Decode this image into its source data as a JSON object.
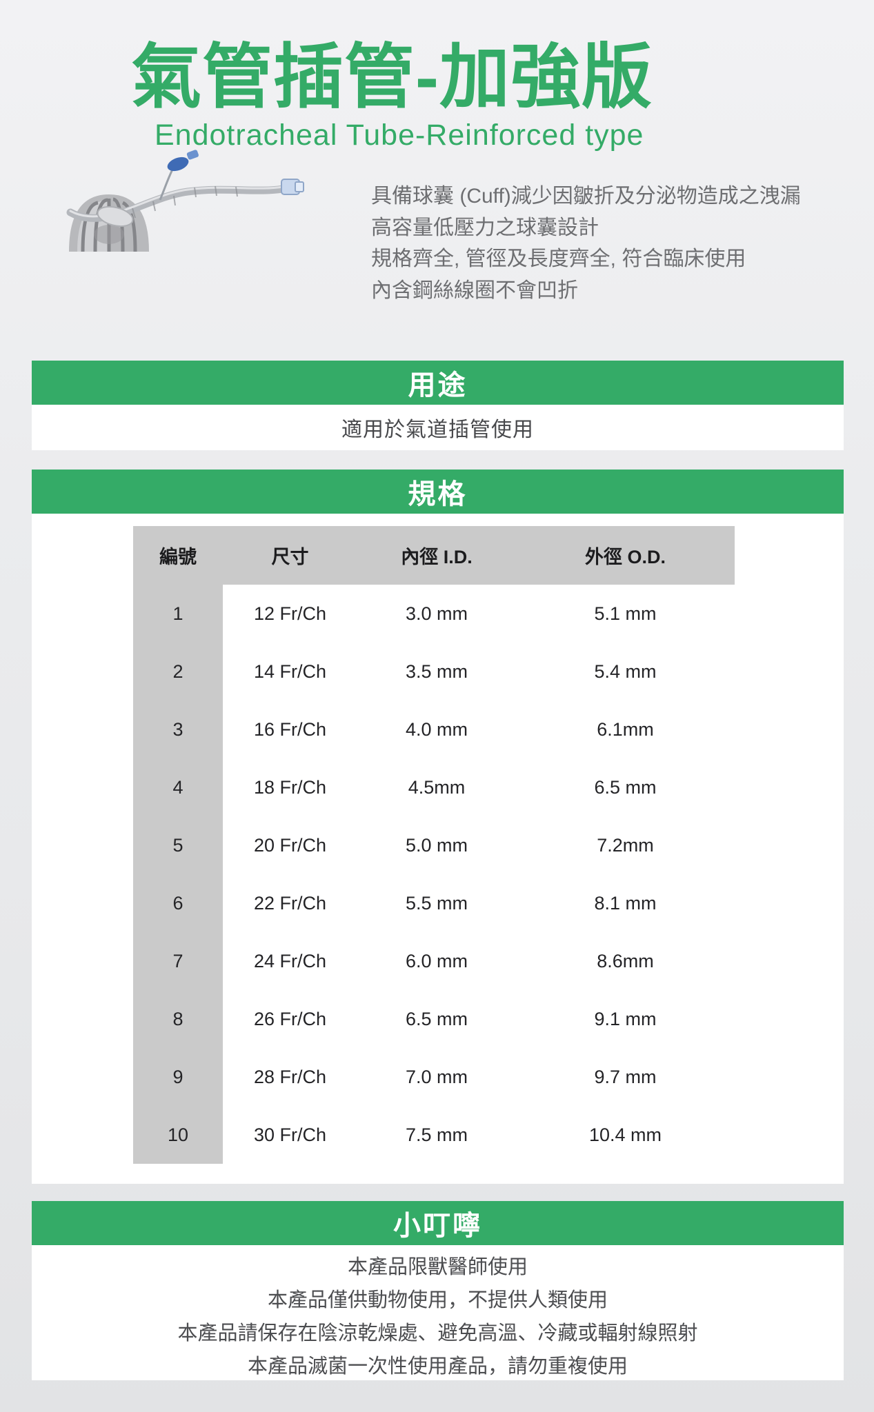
{
  "page": {
    "title": "氣管插管-加強版",
    "subtitle": "Endotracheal Tube-Reinforced type"
  },
  "intro": {
    "features": [
      "具備球囊 (Cuff)減少因皺折及分泌物造成之洩漏",
      "高容量低壓力之球囊設計",
      "規格齊全, 管徑及長度齊全, 符合臨床使用",
      "內含鋼絲線圈不會凹折"
    ]
  },
  "usage": {
    "title": "用途",
    "content": "適用於氣道插管使用"
  },
  "spec": {
    "title": "規格",
    "table": {
      "headers": [
        "編號",
        "尺寸",
        "內徑 I.D.",
        "外徑 O.D."
      ],
      "rows": [
        [
          "1",
          "12 Fr/Ch",
          "3.0 mm",
          "5.1 mm"
        ],
        [
          "2",
          "14 Fr/Ch",
          "3.5 mm",
          "5.4 mm"
        ],
        [
          "3",
          "16 Fr/Ch",
          "4.0 mm",
          "6.1mm"
        ],
        [
          "4",
          "18 Fr/Ch",
          "4.5mm",
          "6.5 mm"
        ],
        [
          "5",
          "20 Fr/Ch",
          "5.0 mm",
          "7.2mm"
        ],
        [
          "6",
          "22 Fr/Ch",
          "5.5 mm",
          "8.1 mm"
        ],
        [
          "7",
          "24 Fr/Ch",
          "6.0 mm",
          "8.6mm"
        ],
        [
          "8",
          "26 Fr/Ch",
          "6.5 mm",
          "9.1 mm"
        ],
        [
          "9",
          "28 Fr/Ch",
          "7.0 mm",
          "9.7 mm"
        ],
        [
          "10",
          "30 Fr/Ch",
          "7.5 mm",
          "10.4 mm"
        ]
      ]
    }
  },
  "notes": {
    "title": "小叮嚀",
    "lines": [
      "本產品限獸醫師使用",
      "本產品僅供動物使用，不提供人類使用",
      "本產品請保存在陰涼乾燥處、避免高溫、冷藏或輻射線照射",
      "本產品滅菌一次性使用產品，請勿重複使用"
    ]
  },
  "colors": {
    "accent_green": "#34ab67",
    "table_header_gray": "#cacaca"
  }
}
